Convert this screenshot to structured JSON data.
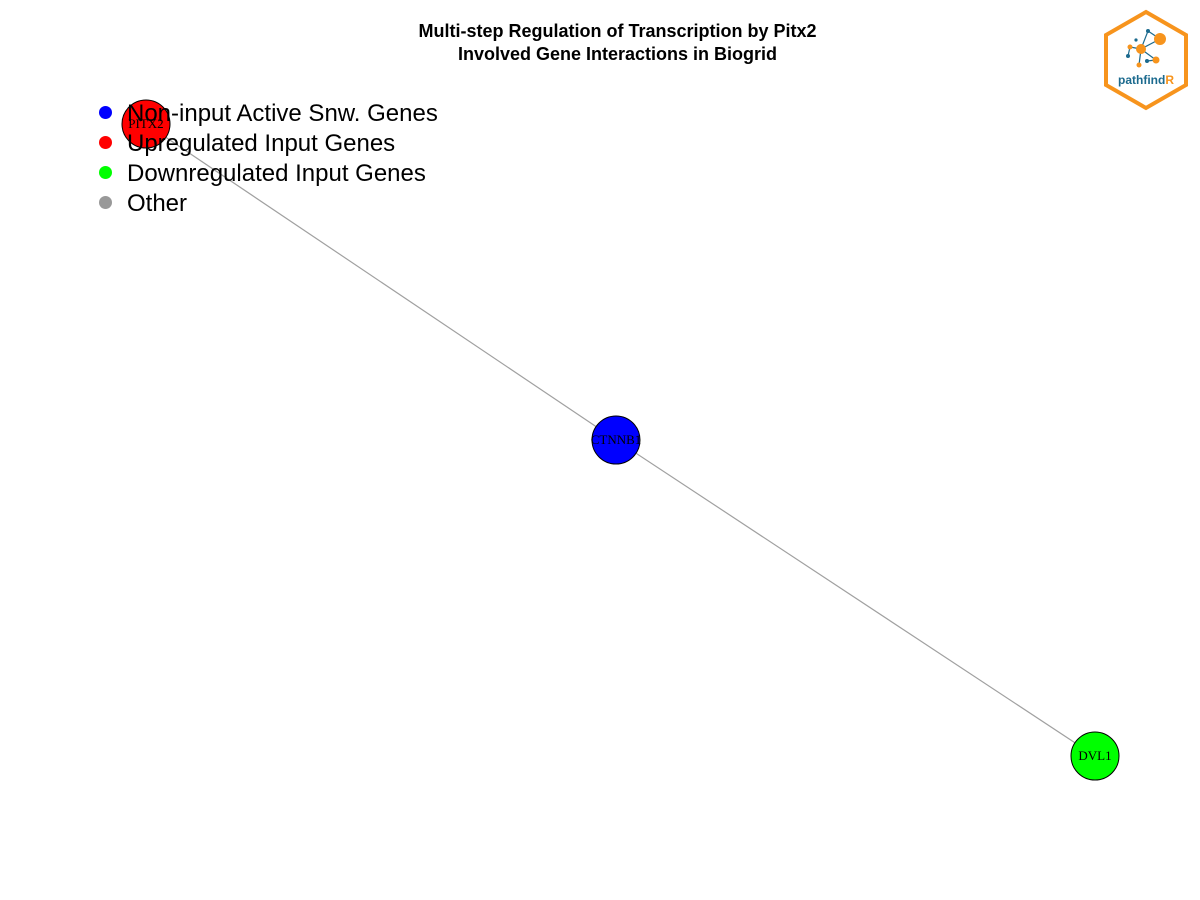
{
  "title": {
    "line1": "Multi-step Regulation of Transcription by Pitx2",
    "line2": "Involved Gene Interactions in Biogrid"
  },
  "legend": [
    {
      "label": "Non-input Active Snw. Genes",
      "color": "#0000ff"
    },
    {
      "label": "Upregulated Input Genes",
      "color": "#ff0000"
    },
    {
      "label": "Downregulated Input Genes",
      "color": "#00ff00"
    },
    {
      "label": "Other",
      "color": "#999999"
    }
  ],
  "nodes": [
    {
      "id": "PITX2",
      "label": "PITX2",
      "category": "Upregulated Input Genes",
      "color": "#ff0000"
    },
    {
      "id": "CTNNB1",
      "label": "CTNNB1",
      "category": "Non-input Active Snw. Genes",
      "color": "#0000ff"
    },
    {
      "id": "DVL1",
      "label": "DVL1",
      "category": "Downregulated Input Genes",
      "color": "#00ff00"
    }
  ],
  "edges": [
    {
      "source": "PITX2",
      "target": "CTNNB1"
    },
    {
      "source": "CTNNB1",
      "target": "DVL1"
    }
  ],
  "logo": {
    "text_main": "pathfind",
    "text_accent": "R",
    "border_color": "#f7941d",
    "text_color": "#1b6a8e",
    "accent_color": "#f7941d"
  }
}
